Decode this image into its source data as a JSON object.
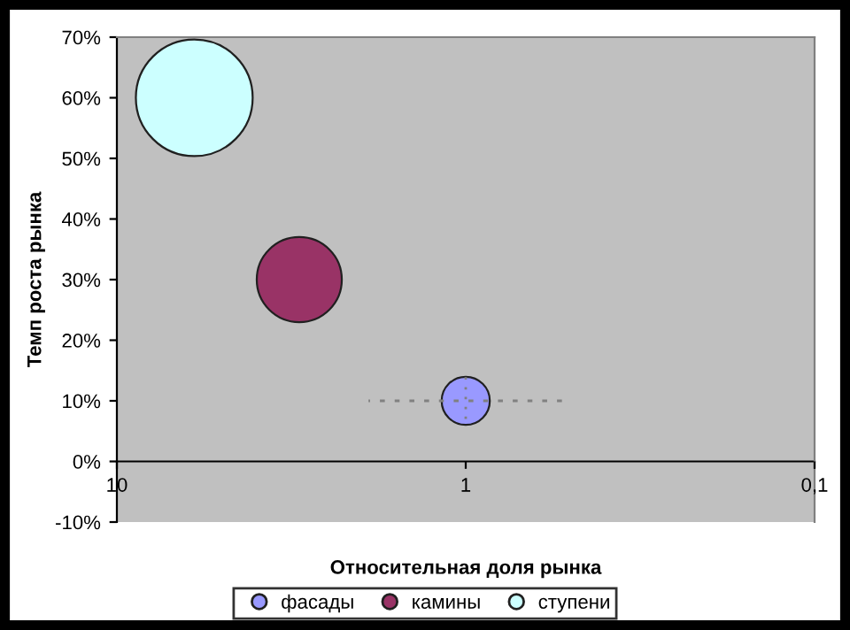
{
  "chart_data": {
    "type": "bubble",
    "xlabel": "Относительная доля рынка",
    "ylabel": "Темп роста рынка",
    "series": [
      {
        "name": "фасады",
        "color": "#9999ff",
        "x": [
          1
        ],
        "values": [
          10
        ],
        "sizes": [
          0.17
        ],
        "errors": [
          [
            7,
            15
          ]
        ],
        "xerrors": [
          [
            0.53,
            1.9
          ]
        ]
      },
      {
        "name": "камины",
        "color": "#993366",
        "x": [
          3
        ],
        "values": [
          30
        ],
        "sizes": [
          0.53
        ]
      },
      {
        "name": "ступени",
        "color": "#ccffff",
        "x": [
          6
        ],
        "values": [
          60
        ],
        "sizes": [
          1
        ]
      }
    ],
    "log": "x",
    "xlim": [
      10,
      0.1
    ],
    "xticks": [
      {
        "value": 10,
        "label": "10"
      },
      {
        "value": 1,
        "label": "1"
      },
      {
        "value": 0.1,
        "label": "0,1"
      }
    ],
    "ylim": [
      -10,
      70
    ],
    "yticks": [
      {
        "value": -10,
        "label": "-10%"
      },
      {
        "value": 0,
        "label": "0%"
      },
      {
        "value": 10,
        "label": "10%"
      },
      {
        "value": 20,
        "label": "20%"
      },
      {
        "value": 30,
        "label": "30%"
      },
      {
        "value": 40,
        "label": "40%"
      },
      {
        "value": 50,
        "label": "50%"
      },
      {
        "value": 60,
        "label": "60%"
      },
      {
        "value": 70,
        "label": "70%"
      }
    ],
    "grid": false,
    "legend": "bottom"
  }
}
